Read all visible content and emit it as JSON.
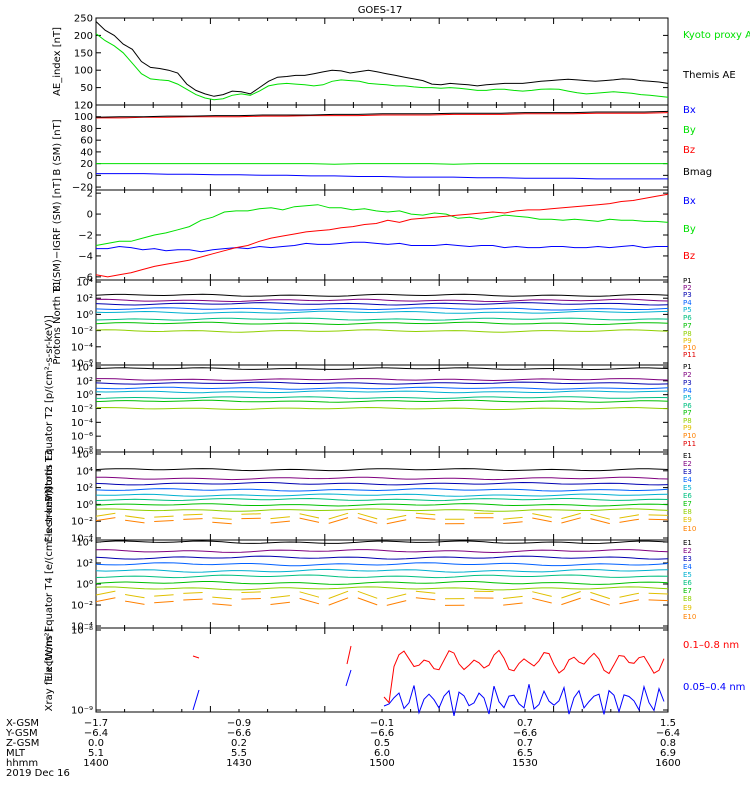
{
  "title": "GOES-17",
  "colors": {
    "black": "#000000",
    "red": "#ff0000",
    "green": "#00e000",
    "blue": "#0000ff",
    "series": [
      "#000000",
      "#7f007f",
      "#0000b0",
      "#0060ff",
      "#00b0d0",
      "#00c080",
      "#00c000",
      "#90d000",
      "#e0c000",
      "#ff8000",
      "#e00000",
      "#b00000"
    ]
  },
  "chart_data": [
    {
      "type": "line",
      "ylabel": "AE_index [nT]",
      "ylim": [
        0,
        250
      ],
      "yticks": [
        "250",
        "200",
        "150",
        "100",
        "50",
        "0"
      ],
      "legend": [
        "Kyoto proxy AE",
        "Themis AE"
      ],
      "series": [
        {
          "name": "Kyoto proxy AE",
          "color": "#00e000",
          "values": [
            205,
            185,
            170,
            150,
            120,
            90,
            75,
            72,
            70,
            60,
            45,
            30,
            20,
            15,
            18,
            28,
            32,
            28,
            40,
            55,
            60,
            62,
            60,
            58,
            55,
            58,
            68,
            72,
            70,
            68,
            62,
            60,
            58,
            55,
            55,
            52,
            50,
            50,
            48,
            50,
            48,
            45,
            42,
            42,
            45,
            45,
            42,
            40,
            42,
            45,
            46,
            45,
            40,
            35,
            32,
            34,
            36,
            38,
            36,
            34,
            30,
            28,
            25,
            22
          ]
        },
        {
          "name": "Themis AE",
          "color": "#000000",
          "values": [
            240,
            215,
            200,
            175,
            160,
            125,
            108,
            105,
            100,
            92,
            60,
            42,
            32,
            25,
            30,
            40,
            38,
            32,
            50,
            68,
            80,
            82,
            85,
            85,
            90,
            95,
            100,
            98,
            92,
            96,
            100,
            95,
            90,
            85,
            80,
            75,
            70,
            60,
            58,
            62,
            60,
            58,
            55,
            58,
            60,
            62,
            62,
            62,
            65,
            68,
            70,
            72,
            74,
            72,
            70,
            68,
            70,
            72,
            75,
            74,
            70,
            68,
            66,
            62
          ]
        }
      ]
    },
    {
      "type": "line",
      "ylabel": "B (SM) [nT]",
      "ylim": [
        -25,
        120
      ],
      "yticks": [
        "120",
        "100",
        "80",
        "60",
        "40",
        "20",
        "0",
        "−20"
      ],
      "legend": [
        "Bx",
        "By",
        "Bz",
        "Bmag"
      ],
      "series": [
        {
          "name": "Bx",
          "color": "#0000ff",
          "values": [
            3,
            3,
            3,
            2,
            2,
            1,
            1,
            0,
            0,
            -1,
            -1,
            -2,
            -2,
            -3,
            -3,
            -3,
            -4,
            -4,
            -5,
            -5,
            -5,
            -6,
            -6,
            -6,
            -6
          ]
        },
        {
          "name": "By",
          "color": "#00e000",
          "values": [
            20,
            20,
            20,
            20,
            20,
            20,
            20,
            20,
            20,
            20,
            19,
            20,
            20,
            20,
            20,
            19,
            20,
            20,
            20,
            20,
            20,
            20,
            20,
            20,
            20
          ]
        },
        {
          "name": "Bz",
          "color": "#ff0000",
          "values": [
            98,
            98,
            99,
            99,
            100,
            100,
            100,
            101,
            101,
            102,
            102,
            102,
            103,
            103,
            103,
            104,
            104,
            104,
            105,
            105,
            105,
            106,
            106,
            106,
            107
          ]
        },
        {
          "name": "Bmag",
          "color": "#000000",
          "values": [
            99,
            100,
            100,
            101,
            101,
            102,
            102,
            103,
            103,
            103,
            104,
            104,
            105,
            105,
            105,
            106,
            106,
            106,
            107,
            107,
            107,
            108,
            108,
            108,
            109
          ]
        }
      ]
    },
    {
      "type": "line",
      "ylabel": "B (SM)−IGRF (SM) [nT]",
      "ylim": [
        -6.3,
        2.3
      ],
      "yticks": [
        "2",
        "0",
        "−2",
        "−4",
        "−6"
      ],
      "legend": [
        "Bx",
        "By",
        "Bz"
      ],
      "series": [
        {
          "name": "Bx",
          "color": "#0000ff",
          "values": [
            -3.3,
            -3.3,
            -3.1,
            -3.2,
            -3.4,
            -3.3,
            -3.5,
            -3.4,
            -3.4,
            -3.6,
            -3.4,
            -3.3,
            -3.2,
            -3.3,
            -3.1,
            -3.2,
            -3.1,
            -3.0,
            -2.8,
            -2.9,
            -2.9,
            -2.8,
            -2.7,
            -2.7,
            -2.8,
            -2.9,
            -2.8,
            -3.0,
            -3.0,
            -3.0,
            -2.9,
            -3.0,
            -3.1,
            -3.0,
            -3.0,
            -3.2,
            -3.1,
            -3.2,
            -3.2,
            -3.1,
            -3.1,
            -3.2,
            -3.2,
            -3.1,
            -3.2,
            -3.1,
            -3.0,
            -3.2,
            -3.1,
            -3.1
          ]
        },
        {
          "name": "By",
          "color": "#00e000",
          "values": [
            -3.0,
            -2.8,
            -2.6,
            -2.6,
            -2.3,
            -2.0,
            -1.8,
            -1.5,
            -1.2,
            -0.6,
            -0.3,
            0.2,
            0.3,
            0.3,
            0.5,
            0.6,
            0.4,
            0.7,
            0.8,
            0.9,
            0.6,
            0.6,
            0.4,
            0.5,
            0.3,
            0.2,
            0.3,
            0.0,
            -0.1,
            0.1,
            0.0,
            -0.4,
            -0.3,
            -0.5,
            -0.3,
            -0.1,
            -0.2,
            -0.3,
            -0.5,
            -0.5,
            -0.6,
            -0.5,
            -0.6,
            -0.7,
            -0.5,
            -0.6,
            -0.6,
            -0.7,
            -0.7,
            -0.8
          ]
        },
        {
          "name": "Bz",
          "color": "#ff0000",
          "values": [
            -5.8,
            -6.0,
            -5.8,
            -5.6,
            -5.3,
            -5.0,
            -4.8,
            -4.6,
            -4.4,
            -4.1,
            -3.8,
            -3.5,
            -3.2,
            -3.0,
            -2.6,
            -2.3,
            -2.1,
            -1.9,
            -1.7,
            -1.6,
            -1.5,
            -1.3,
            -1.2,
            -1.0,
            -0.9,
            -0.6,
            -0.8,
            -0.5,
            -0.4,
            -0.3,
            -0.2,
            -0.1,
            0.0,
            0.1,
            0.2,
            0.1,
            0.3,
            0.4,
            0.4,
            0.5,
            0.6,
            0.7,
            0.8,
            0.9,
            1.0,
            1.2,
            1.3,
            1.5,
            1.7,
            1.9
          ]
        }
      ]
    },
    {
      "type": "line",
      "ylabel": "Protons North T1",
      "log": true,
      "ylim": [
        -6,
        4
      ],
      "yticks": [
        "10⁴",
        "10²",
        "10⁰",
        "10⁻²",
        "10⁻⁴",
        "10⁻⁶"
      ],
      "legend": [
        "P1",
        "P2",
        "P3",
        "P4",
        "P5",
        "P6",
        "P7",
        "P8",
        "P9",
        "P10",
        "P11"
      ],
      "levels": [
        2.2,
        1.6,
        1.2,
        0.6,
        0.2,
        -0.6,
        -1.1,
        -2.0
      ]
    },
    {
      "type": "line",
      "ylabel": "Protons Equator T2 [p/(cm²-s-sr-keV)]",
      "log": true,
      "ylim": [
        -8,
        4
      ],
      "yticks": [
        "10⁴",
        "10²",
        "10⁰",
        "10⁻²",
        "10⁻⁴",
        "10⁻⁶",
        "10⁻⁸"
      ],
      "legend": [
        "P1",
        "P2",
        "P3",
        "P4",
        "P5",
        "P6",
        "P7",
        "P8",
        "P9",
        "P10",
        "P11"
      ],
      "levels": [
        3.5,
        2.0,
        1.5,
        0.8,
        0.3,
        -0.5,
        -1.0,
        -2.0
      ]
    },
    {
      "type": "line",
      "ylabel": "Electrons North T3",
      "log": true,
      "ylim": [
        -4,
        6
      ],
      "yticks": [
        "10⁶",
        "10⁴",
        "10²",
        "10⁰",
        "10⁻²",
        "10⁻⁴"
      ],
      "legend": [
        "E1",
        "E2",
        "E3",
        "E4",
        "E5",
        "E6",
        "E7",
        "E8",
        "E9",
        "E10"
      ],
      "levels": [
        4.0,
        3.0,
        2.4,
        1.7,
        1.1,
        0.6,
        0.0,
        -0.6,
        -1.3,
        -1.8
      ]
    },
    {
      "type": "line",
      "ylabel": "Electrons Equator T4 [e/(cm²-s-sr-keV)]",
      "log": true,
      "ylim": [
        -4,
        4
      ],
      "yticks": [
        "10⁴",
        "10²",
        "10⁰",
        "10⁻²",
        "10⁻⁴"
      ],
      "legend": [
        "E1",
        "E2",
        "E3",
        "E4",
        "E5",
        "E6",
        "E7",
        "E8",
        "E9",
        "E10"
      ],
      "levels": [
        3.8,
        3.0,
        2.4,
        1.8,
        1.2,
        0.7,
        0.1,
        -0.4,
        -1.0,
        -1.6
      ]
    },
    {
      "type": "line",
      "ylabel": "Xray flux [W/m²]",
      "log": true,
      "ylim": [
        -9,
        -8
      ],
      "yticks": [
        "10⁻⁸",
        "10⁻⁹"
      ],
      "legend": [
        "0.1–0.8 nm",
        "0.05–0.4 nm"
      ],
      "series": [
        {
          "name": "0.1–0.8 nm",
          "color": "#ff0000"
        },
        {
          "name": "0.05–0.4 nm",
          "color": "#0000ff"
        }
      ]
    }
  ],
  "xaxis": {
    "rows": [
      {
        "label": "X-GSM",
        "values": [
          "−1.7",
          "−0.9",
          "−0.1",
          "0.7",
          "1.5"
        ]
      },
      {
        "label": "Y-GSM",
        "values": [
          "−6.4",
          "−6.6",
          "−6.6",
          "−6.6",
          "−6.4"
        ]
      },
      {
        "label": "Z-GSM",
        "values": [
          "0.0",
          "0.2",
          "0.5",
          "0.7",
          "0.8"
        ]
      },
      {
        "label": "MLT",
        "values": [
          "5.1",
          "5.5",
          "6.0",
          "6.5",
          "6.9"
        ]
      },
      {
        "label": "hhmm",
        "values": [
          "1400",
          "1430",
          "1500",
          "1530",
          "1600"
        ]
      }
    ],
    "date": "2019 Dec 16"
  }
}
